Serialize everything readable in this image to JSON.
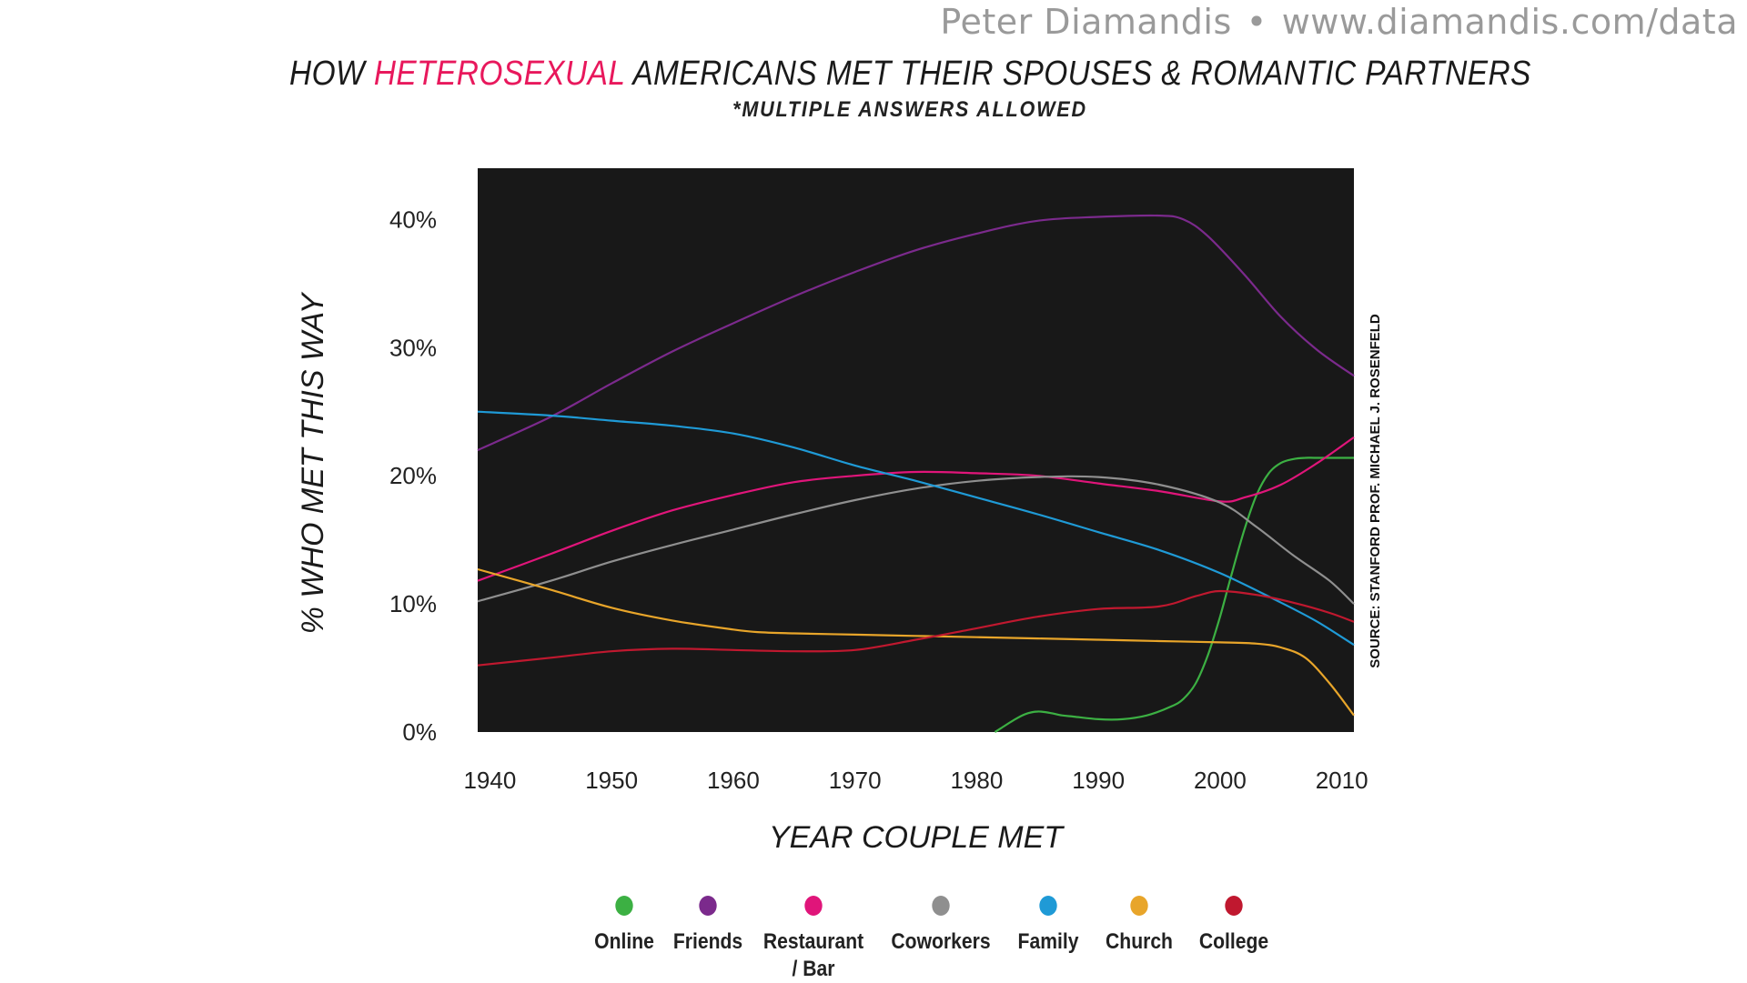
{
  "credit": {
    "name": "Peter Diamandis",
    "separator": "•",
    "url": "www.diamandis.com/data"
  },
  "chart_data": {
    "type": "line",
    "title_parts": [
      "HOW ",
      "HETEROSEXUAL",
      " AMERICANS MET THEIR SPOUSES & ROMANTIC PARTNERS"
    ],
    "subtitle": "*MULTIPLE ANSWERS ALLOWED",
    "xlabel": "YEAR COUPLE MET",
    "ylabel": "% WHO MET THIS WAY",
    "source": "SOURCE: STANFORD PROF. MICHAEL J. ROSENFELD",
    "xlim": [
      1939,
      2011
    ],
    "ylim": [
      0,
      44
    ],
    "x_ticks": [
      1940,
      1950,
      1960,
      1970,
      1980,
      1990,
      2000,
      2010
    ],
    "y_ticks": [
      0,
      10,
      20,
      30,
      40
    ],
    "y_tick_labels": [
      "0%",
      "10%",
      "20%",
      "30%",
      "40%"
    ],
    "x_tick_labels": [
      "1940",
      "1950",
      "1960",
      "1970",
      "1980",
      "1990",
      "2000",
      "2010"
    ],
    "colors": {
      "highlight": "#e8185c",
      "plot_background": "#181818"
    },
    "series": [
      {
        "name": "Online",
        "color": "#3cb043",
        "x": [
          1981.5,
          1982,
          1983,
          1984,
          1985,
          1986,
          1987,
          1988,
          1990,
          1992,
          1994,
          1996,
          1997,
          1998,
          1999,
          2000,
          2001,
          2002,
          2003,
          2004,
          2005,
          2006,
          2007,
          2008,
          2011
        ],
        "y": [
          0,
          0.3,
          0.9,
          1.4,
          1.6,
          1.5,
          1.3,
          1.2,
          1.0,
          1.0,
          1.3,
          2.0,
          2.6,
          3.8,
          6.0,
          9.0,
          12.5,
          15.8,
          18.5,
          20.2,
          21.0,
          21.3,
          21.4,
          21.4,
          21.4
        ]
      },
      {
        "name": "Friends",
        "color": "#7b2a8c",
        "x": [
          1939,
          1945,
          1950,
          1955,
          1960,
          1965,
          1970,
          1975,
          1980,
          1985,
          1990,
          1995,
          1997,
          1999,
          2002,
          2005,
          2008,
          2011
        ],
        "y": [
          22.0,
          24.6,
          27.2,
          29.7,
          31.9,
          34.0,
          35.9,
          37.6,
          38.9,
          39.9,
          40.2,
          40.3,
          40.0,
          38.7,
          35.7,
          32.4,
          29.8,
          27.8
        ]
      },
      {
        "name": "Restaurant / Bar",
        "color": "#e0157a",
        "x": [
          1939,
          1945,
          1950,
          1955,
          1960,
          1965,
          1970,
          1975,
          1980,
          1985,
          1990,
          1995,
          2000,
          2002,
          2005,
          2008,
          2011
        ],
        "y": [
          11.8,
          13.9,
          15.7,
          17.3,
          18.5,
          19.5,
          20.0,
          20.3,
          20.2,
          20.0,
          19.4,
          18.8,
          18.0,
          18.3,
          19.3,
          21.0,
          23.0
        ]
      },
      {
        "name": "Coworkers",
        "color": "#8f8f8f",
        "x": [
          1939,
          1945,
          1950,
          1955,
          1960,
          1965,
          1970,
          1975,
          1980,
          1985,
          1990,
          1995,
          2000,
          2003,
          2006,
          2009,
          2011
        ],
        "y": [
          10.2,
          11.8,
          13.3,
          14.6,
          15.8,
          17.0,
          18.1,
          19.0,
          19.6,
          19.9,
          19.9,
          19.3,
          17.9,
          16.0,
          13.8,
          11.8,
          10.0
        ]
      },
      {
        "name": "Family",
        "color": "#1f9ad6",
        "x": [
          1939,
          1945,
          1950,
          1955,
          1960,
          1965,
          1970,
          1975,
          1980,
          1985,
          1990,
          1995,
          2000,
          2005,
          2008,
          2011
        ],
        "y": [
          25.0,
          24.7,
          24.3,
          23.9,
          23.3,
          22.2,
          20.8,
          19.6,
          18.3,
          17.0,
          15.6,
          14.2,
          12.4,
          10.1,
          8.6,
          6.8
        ]
      },
      {
        "name": "Church",
        "color": "#e8a52a",
        "x": [
          1939,
          1945,
          1950,
          1955,
          1960,
          1962,
          1965,
          1970,
          1975,
          1980,
          1985,
          1990,
          1995,
          2000,
          2003,
          2005,
          2007,
          2009,
          2011
        ],
        "y": [
          12.7,
          11.1,
          9.7,
          8.7,
          8.0,
          7.8,
          7.7,
          7.6,
          7.5,
          7.4,
          7.3,
          7.2,
          7.1,
          7.0,
          6.9,
          6.6,
          5.8,
          3.8,
          1.3
        ]
      },
      {
        "name": "College",
        "color": "#c0182f",
        "x": [
          1939,
          1945,
          1950,
          1955,
          1960,
          1965,
          1970,
          1975,
          1980,
          1985,
          1990,
          1995,
          1998,
          2000,
          2003,
          2006,
          2009,
          2011
        ],
        "y": [
          5.2,
          5.8,
          6.3,
          6.5,
          6.4,
          6.3,
          6.4,
          7.2,
          8.1,
          9.0,
          9.6,
          9.8,
          10.6,
          11.0,
          10.7,
          10.1,
          9.3,
          8.6
        ]
      }
    ],
    "legend": [
      {
        "label": "Online",
        "color": "#3cb043"
      },
      {
        "label": "Friends",
        "color": "#7b2a8c"
      },
      {
        "label": "Restaurant\n/ Bar",
        "color": "#e0157a"
      },
      {
        "label": "Coworkers",
        "color": "#8f8f8f"
      },
      {
        "label": "Family",
        "color": "#1f9ad6"
      },
      {
        "label": "Church",
        "color": "#e8a52a"
      },
      {
        "label": "College",
        "color": "#c0182f"
      }
    ]
  }
}
